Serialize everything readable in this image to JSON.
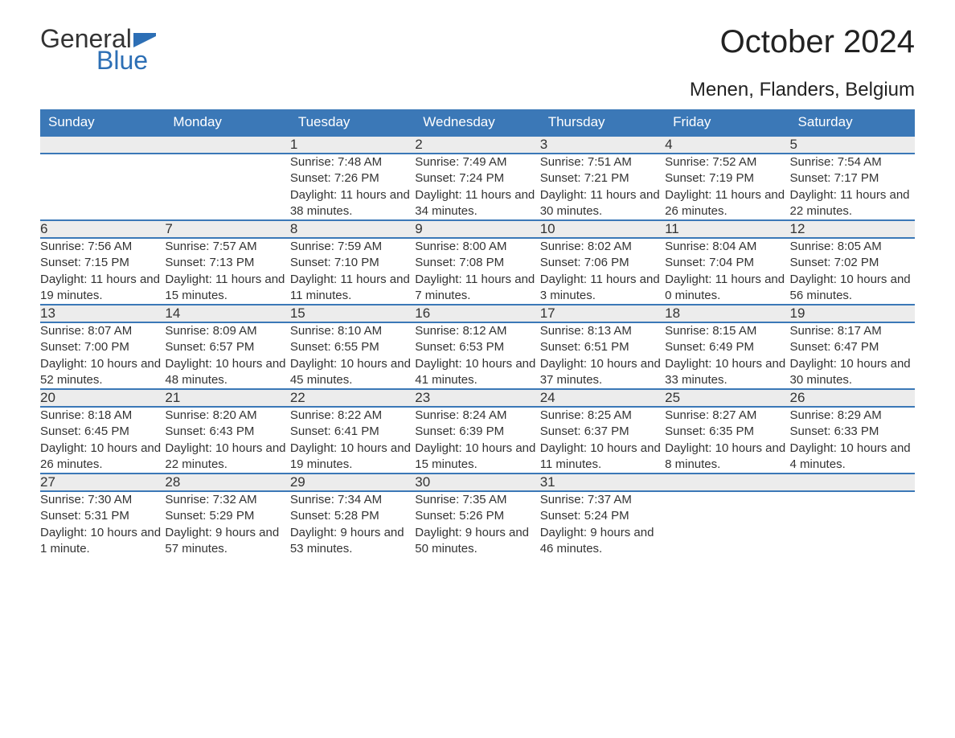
{
  "logo": {
    "part1": "General",
    "part2": "Blue",
    "flag_color": "#2d6fb5",
    "text_color_dark": "#333333",
    "text_color_blue": "#2d6fb5"
  },
  "title": "October 2024",
  "location": "Menen, Flanders, Belgium",
  "colors": {
    "header_bg": "#3b78b7",
    "header_text": "#ffffff",
    "daynum_bg": "#ececec",
    "row_separator": "#3b78b7",
    "body_text": "#333333",
    "page_bg": "#ffffff"
  },
  "fonts": {
    "title_size": 40,
    "location_size": 24,
    "header_size": 17,
    "daynum_size": 17,
    "cell_size": 15
  },
  "day_headers": [
    "Sunday",
    "Monday",
    "Tuesday",
    "Wednesday",
    "Thursday",
    "Friday",
    "Saturday"
  ],
  "weeks": [
    [
      null,
      null,
      {
        "n": "1",
        "sr": "7:48 AM",
        "ss": "7:26 PM",
        "dl": "11 hours and 38 minutes."
      },
      {
        "n": "2",
        "sr": "7:49 AM",
        "ss": "7:24 PM",
        "dl": "11 hours and 34 minutes."
      },
      {
        "n": "3",
        "sr": "7:51 AM",
        "ss": "7:21 PM",
        "dl": "11 hours and 30 minutes."
      },
      {
        "n": "4",
        "sr": "7:52 AM",
        "ss": "7:19 PM",
        "dl": "11 hours and 26 minutes."
      },
      {
        "n": "5",
        "sr": "7:54 AM",
        "ss": "7:17 PM",
        "dl": "11 hours and 22 minutes."
      }
    ],
    [
      {
        "n": "6",
        "sr": "7:56 AM",
        "ss": "7:15 PM",
        "dl": "11 hours and 19 minutes."
      },
      {
        "n": "7",
        "sr": "7:57 AM",
        "ss": "7:13 PM",
        "dl": "11 hours and 15 minutes."
      },
      {
        "n": "8",
        "sr": "7:59 AM",
        "ss": "7:10 PM",
        "dl": "11 hours and 11 minutes."
      },
      {
        "n": "9",
        "sr": "8:00 AM",
        "ss": "7:08 PM",
        "dl": "11 hours and 7 minutes."
      },
      {
        "n": "10",
        "sr": "8:02 AM",
        "ss": "7:06 PM",
        "dl": "11 hours and 3 minutes."
      },
      {
        "n": "11",
        "sr": "8:04 AM",
        "ss": "7:04 PM",
        "dl": "11 hours and 0 minutes."
      },
      {
        "n": "12",
        "sr": "8:05 AM",
        "ss": "7:02 PM",
        "dl": "10 hours and 56 minutes."
      }
    ],
    [
      {
        "n": "13",
        "sr": "8:07 AM",
        "ss": "7:00 PM",
        "dl": "10 hours and 52 minutes."
      },
      {
        "n": "14",
        "sr": "8:09 AM",
        "ss": "6:57 PM",
        "dl": "10 hours and 48 minutes."
      },
      {
        "n": "15",
        "sr": "8:10 AM",
        "ss": "6:55 PM",
        "dl": "10 hours and 45 minutes."
      },
      {
        "n": "16",
        "sr": "8:12 AM",
        "ss": "6:53 PM",
        "dl": "10 hours and 41 minutes."
      },
      {
        "n": "17",
        "sr": "8:13 AM",
        "ss": "6:51 PM",
        "dl": "10 hours and 37 minutes."
      },
      {
        "n": "18",
        "sr": "8:15 AM",
        "ss": "6:49 PM",
        "dl": "10 hours and 33 minutes."
      },
      {
        "n": "19",
        "sr": "8:17 AM",
        "ss": "6:47 PM",
        "dl": "10 hours and 30 minutes."
      }
    ],
    [
      {
        "n": "20",
        "sr": "8:18 AM",
        "ss": "6:45 PM",
        "dl": "10 hours and 26 minutes."
      },
      {
        "n": "21",
        "sr": "8:20 AM",
        "ss": "6:43 PM",
        "dl": "10 hours and 22 minutes."
      },
      {
        "n": "22",
        "sr": "8:22 AM",
        "ss": "6:41 PM",
        "dl": "10 hours and 19 minutes."
      },
      {
        "n": "23",
        "sr": "8:24 AM",
        "ss": "6:39 PM",
        "dl": "10 hours and 15 minutes."
      },
      {
        "n": "24",
        "sr": "8:25 AM",
        "ss": "6:37 PM",
        "dl": "10 hours and 11 minutes."
      },
      {
        "n": "25",
        "sr": "8:27 AM",
        "ss": "6:35 PM",
        "dl": "10 hours and 8 minutes."
      },
      {
        "n": "26",
        "sr": "8:29 AM",
        "ss": "6:33 PM",
        "dl": "10 hours and 4 minutes."
      }
    ],
    [
      {
        "n": "27",
        "sr": "7:30 AM",
        "ss": "5:31 PM",
        "dl": "10 hours and 1 minute."
      },
      {
        "n": "28",
        "sr": "7:32 AM",
        "ss": "5:29 PM",
        "dl": "9 hours and 57 minutes."
      },
      {
        "n": "29",
        "sr": "7:34 AM",
        "ss": "5:28 PM",
        "dl": "9 hours and 53 minutes."
      },
      {
        "n": "30",
        "sr": "7:35 AM",
        "ss": "5:26 PM",
        "dl": "9 hours and 50 minutes."
      },
      {
        "n": "31",
        "sr": "7:37 AM",
        "ss": "5:24 PM",
        "dl": "9 hours and 46 minutes."
      },
      null,
      null
    ]
  ],
  "labels": {
    "sunrise": "Sunrise: ",
    "sunset": "Sunset: ",
    "daylight": "Daylight: "
  }
}
